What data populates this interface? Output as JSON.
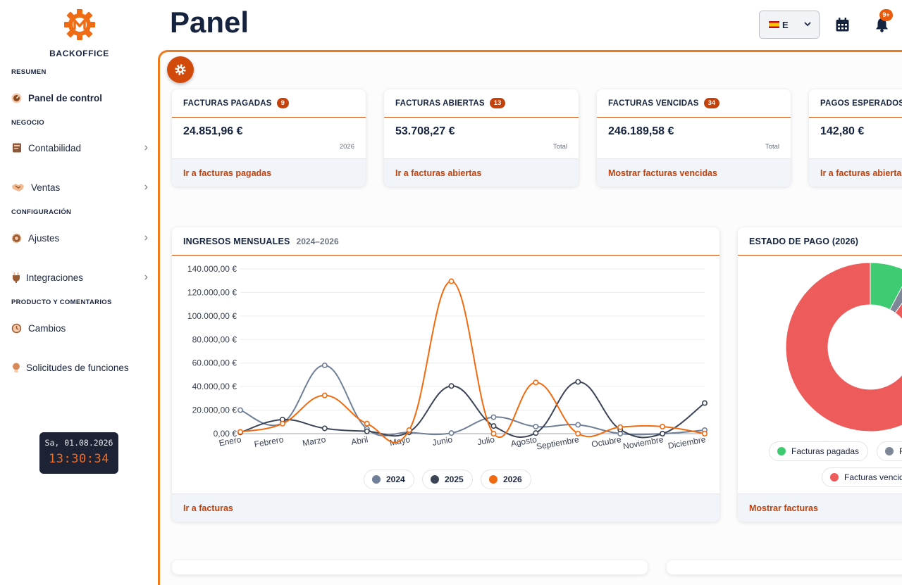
{
  "sidebar": {
    "brand": "BACKOFFICE",
    "sections": [
      {
        "title": "RESUMEN",
        "items": [
          {
            "label": "Panel de control",
            "icon": "dashboard-icon",
            "active": true
          }
        ]
      },
      {
        "title": "NEGOCIO",
        "items": [
          {
            "label": "Contabilidad",
            "icon": "book-icon"
          },
          {
            "label": "Ventas",
            "icon": "handshake-icon"
          }
        ]
      },
      {
        "title": "CONFIGURACIÓN",
        "items": [
          {
            "label": "Ajustes",
            "icon": "gear-icon"
          },
          {
            "label": "Integraciones",
            "icon": "plug-icon"
          }
        ]
      },
      {
        "title": "PRODUCTO Y COMENTARIOS",
        "items": [
          {
            "label": "Cambios",
            "icon": "history-icon"
          },
          {
            "label": "Solicitudes de funciones",
            "icon": "lightbulb-icon"
          }
        ]
      }
    ],
    "clock": {
      "date": "Sa, 01.08.2026",
      "time": "13:30:34"
    }
  },
  "header": {
    "title": "Panel",
    "language": "E",
    "notifications_badge": "9+"
  },
  "colors": {
    "accent": "#f07a1a",
    "dark_accent": "#c2410c",
    "navy": "#15233f"
  },
  "stats": [
    {
      "title": "FACTURAS PAGADAS",
      "badge": "9",
      "value": "24.851,96 €",
      "sub": "2026",
      "link": "Ir a facturas pagadas"
    },
    {
      "title": "FACTURAS ABIERTAS",
      "badge": "13",
      "value": "53.708,27 €",
      "sub": "Total",
      "link": "Ir a facturas abiertas"
    },
    {
      "title": "FACTURAS VENCIDAS",
      "badge": "34",
      "value": "246.189,58 €",
      "sub": "Total",
      "link": "Mostrar facturas vencidas"
    },
    {
      "title": "PAGOS ESPERADOS",
      "badge": "",
      "value": "142,80 €",
      "sub": "",
      "link": "Ir a facturas abiertas"
    }
  ],
  "income_card": {
    "title": "INGRESOS MENSUALES",
    "range": "2024–2026",
    "link": "Ir a facturas"
  },
  "payment_card": {
    "title": "ESTADO DE PAGO (2026)",
    "link": "Mostrar facturas",
    "legend": [
      "Facturas pagadas",
      "F",
      "Facturas vencid"
    ]
  },
  "chart_data": [
    {
      "type": "line",
      "title": "INGRESOS MENSUALES",
      "categories": [
        "Enero",
        "Febrero",
        "Marzo",
        "Abril",
        "Mayo",
        "Junio",
        "Julio",
        "Agosto",
        "Septiembre",
        "Octubre",
        "Noviembre",
        "Diciembre"
      ],
      "ylim": [
        0,
        140000
      ],
      "y_ticks": [
        "0,00 €",
        "20.000,00 €",
        "40.000,00 €",
        "60.000,00 €",
        "80.000,00 €",
        "100.000,00 €",
        "120.000,00 €",
        "140.000,00 €"
      ],
      "grid": true,
      "legend_position": "bottom",
      "series": [
        {
          "name": "2024",
          "color": "#6f7f98",
          "values": [
            20000,
            9000,
            58000,
            4000,
            1000,
            500,
            14000,
            6000,
            7500,
            0,
            0,
            3000
          ]
        },
        {
          "name": "2025",
          "color": "#3b4455",
          "values": [
            1000,
            12000,
            4500,
            2000,
            1500,
            40500,
            6500,
            500,
            44000,
            3500,
            0,
            26000
          ]
        },
        {
          "name": "2026",
          "color": "#f26a10",
          "values": [
            1500,
            8500,
            32500,
            8500,
            3000,
            129500,
            0,
            43500,
            0,
            5500,
            6000,
            0
          ]
        }
      ]
    },
    {
      "type": "pie",
      "title": "ESTADO DE PAGO (2026)",
      "slices": [
        {
          "label": "Facturas pagadas",
          "value": 7.7,
          "color": "#3fcb72"
        },
        {
          "label": "F",
          "value": 2.3,
          "color": "#7d8797"
        },
        {
          "label": "Facturas vencid",
          "value": 90,
          "color": "#ee5b5b"
        }
      ]
    }
  ]
}
